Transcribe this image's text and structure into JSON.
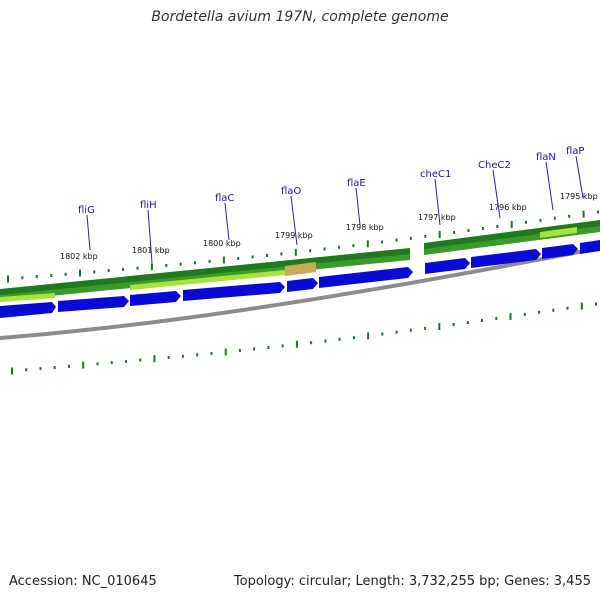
{
  "title": "Bordetella avium 197N, complete genome",
  "footer": {
    "accession": "Accession: NC_010645",
    "summary": "Topology: circular; Length: 3,732,255 bp; Genes: 3,455"
  },
  "colors": {
    "forward_cds": "#0a0ad6",
    "backbone": "#8c8c8c",
    "gene_dark": "#1f7a1f",
    "gene_light": "#a8e23a",
    "tick": "#1c7a1c",
    "label_line": "#2222bb",
    "label_text": "#1a1aa8"
  },
  "gene_labels": [
    "fliG",
    "fliH",
    "flaC",
    "flaO",
    "flaE",
    "cheC1",
    "CheC2",
    "flaN",
    "flaP"
  ],
  "kbp_labels": [
    "1802 kbp",
    "1801 kbp",
    "1800 kbp",
    "1799 kbp",
    "1798 kbp",
    "1797 kbp",
    "1796 kbp",
    "1795 kbp"
  ]
}
